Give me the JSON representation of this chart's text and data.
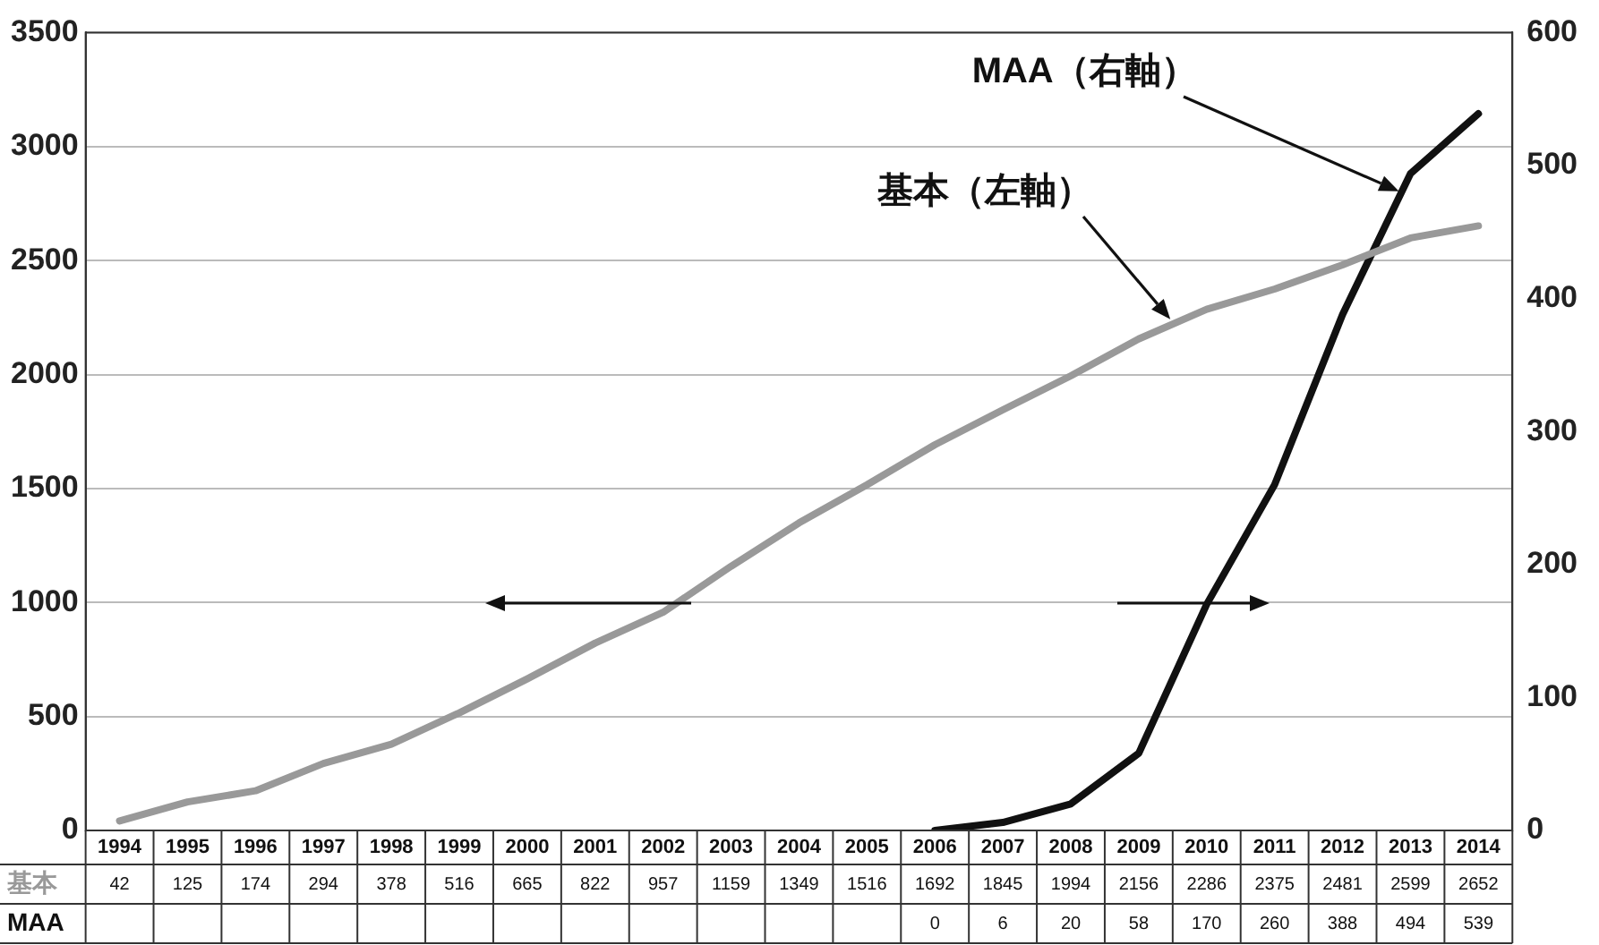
{
  "chart_data": {
    "type": "line",
    "categories": [
      "1994",
      "1995",
      "1996",
      "1997",
      "1998",
      "1999",
      "2000",
      "2001",
      "2002",
      "2003",
      "2004",
      "2005",
      "2006",
      "2007",
      "2008",
      "2009",
      "2010",
      "2011",
      "2012",
      "2013",
      "2014"
    ],
    "series": [
      {
        "name": "基本",
        "color": "#999999",
        "values": [
          42,
          125,
          174,
          294,
          378,
          516,
          665,
          822,
          957,
          1159,
          1349,
          1516,
          1692,
          1845,
          1994,
          2156,
          2286,
          2375,
          2481,
          2599,
          2652
        ]
      },
      {
        "name": "MAA",
        "color": "#111111",
        "axis": "y2",
        "values": [
          null,
          null,
          null,
          null,
          null,
          null,
          null,
          null,
          null,
          null,
          null,
          null,
          0,
          6,
          20,
          58,
          170,
          260,
          388,
          494,
          539
        ]
      }
    ],
    "ylim": [
      0,
      3500
    ],
    "yticks": [
      0,
      500,
      1000,
      1500,
      2000,
      2500,
      3000,
      3500
    ],
    "y2lim": [
      0,
      600
    ],
    "y2ticks": [
      0,
      100,
      200,
      300,
      400,
      500,
      600
    ],
    "annotations": [
      "基本（左軸）",
      "MAA（右軸）"
    ],
    "data_labels": true,
    "grid": "y",
    "legend": false,
    "marker": "none",
    "line_style": "solid"
  }
}
